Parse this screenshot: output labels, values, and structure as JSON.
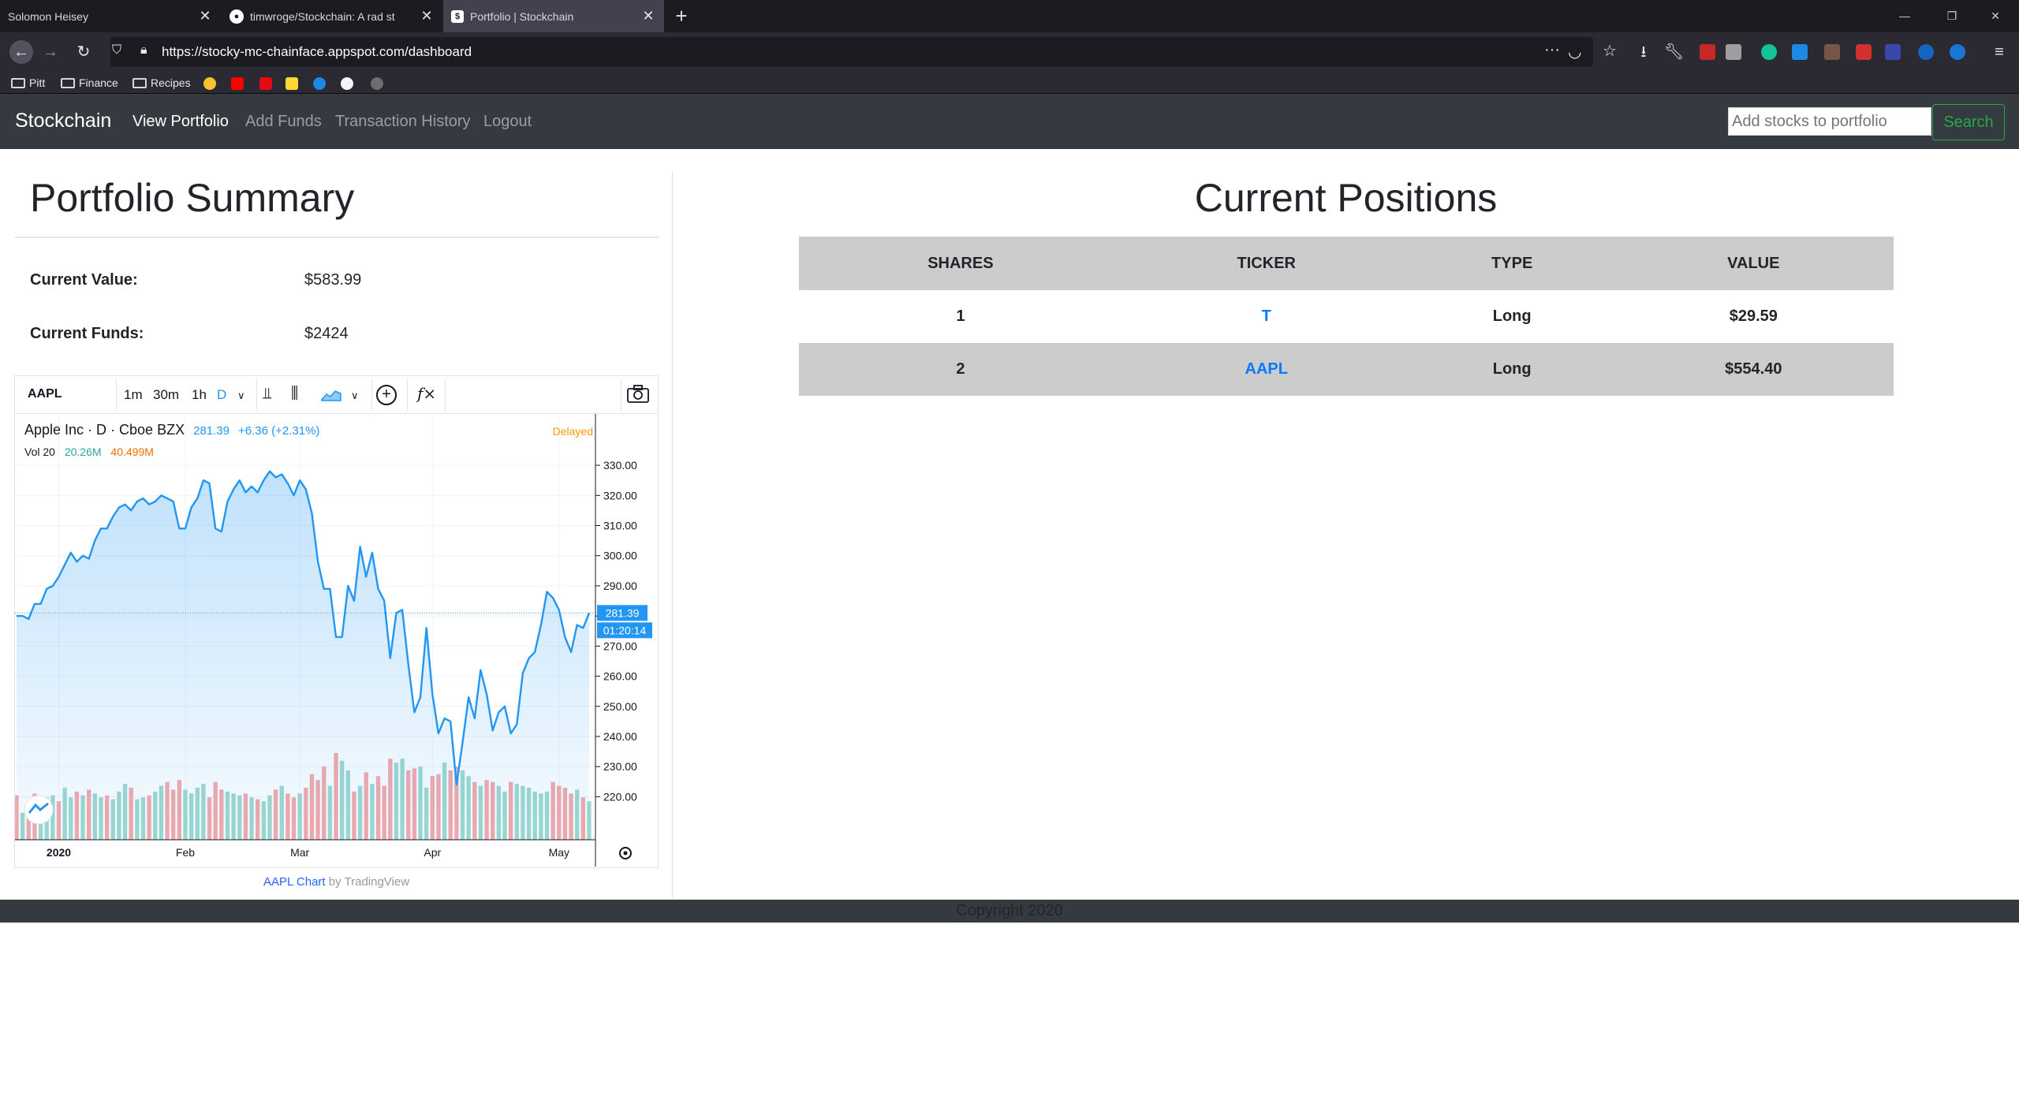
{
  "browser": {
    "tabs": [
      {
        "title": "Solomon Heisey"
      },
      {
        "title": "timwroge/Stockchain: A rad st"
      },
      {
        "title": "Portfolio | Stockchain"
      }
    ],
    "url": "https://stocky-mc-chainface.appspot.com/dashboard",
    "bookmarks": [
      "Pitt",
      "Finance",
      "Recipes"
    ]
  },
  "app_nav": {
    "brand": "Stockchain",
    "links": [
      "View Portfolio",
      "Add Funds",
      "Transaction History",
      "Logout"
    ],
    "search_placeholder": "Add stocks to portfolio",
    "search_button": "Search"
  },
  "summary": {
    "title": "Portfolio Summary",
    "current_value_label": "Current Value:",
    "current_value": "$583.99",
    "current_funds_label": "Current Funds:",
    "current_funds": "$2424"
  },
  "tv": {
    "symbol": "AAPL",
    "intervals": [
      "1m",
      "30m",
      "1h",
      "D"
    ],
    "name": "Apple Inc · D · Cboe BZX",
    "price": "281.39",
    "change": "+6.36 (+2.31%)",
    "delayed": "Delayed",
    "vol_label": "Vol 20",
    "vol_a": "20.26M",
    "vol_b": "40.499M",
    "price_tag": "281.39",
    "time_tag": "01:20:14",
    "attribution_link": "AAPL Chart",
    "attribution_rest": "by TradingView",
    "fx_icon": "f×"
  },
  "chart_data": {
    "type": "line",
    "title": "Apple Inc · D · Cboe BZX",
    "ylim": [
      212,
      335
    ],
    "yticks": [
      "330.00",
      "320.00",
      "310.00",
      "300.00",
      "290.00",
      "280.00",
      "270.00",
      "260.00",
      "250.00",
      "240.00",
      "230.00",
      "220.00"
    ],
    "ytick_values": [
      330,
      320,
      310,
      300,
      290,
      280,
      270,
      260,
      250,
      240,
      230,
      220
    ],
    "xticks": [
      "2020",
      "Feb",
      "Mar",
      "Apr",
      "May"
    ],
    "xtick_index": [
      7,
      28,
      47,
      69,
      90
    ],
    "close": [
      280,
      280,
      279,
      284,
      284,
      289,
      290,
      293,
      297,
      301,
      298,
      300,
      299,
      305,
      309,
      309,
      313,
      316,
      317,
      315,
      318,
      319,
      317,
      318,
      320,
      319,
      318,
      309,
      309,
      316,
      319,
      325,
      324,
      309,
      308,
      318,
      322,
      325,
      321,
      323,
      321,
      325,
      328,
      326,
      327,
      324,
      320,
      325,
      322,
      314,
      298,
      289,
      289,
      273,
      273,
      290,
      285,
      303,
      293,
      301,
      289,
      285,
      266,
      281,
      282,
      264,
      248,
      253,
      276,
      254,
      241,
      246,
      245,
      224,
      238,
      253,
      246,
      262,
      254,
      242,
      248,
      250,
      241,
      244,
      261,
      266,
      268,
      277,
      288,
      286,
      282,
      273,
      268,
      277,
      276,
      281
    ],
    "volume": [
      23,
      14,
      16,
      24,
      21,
      22,
      23,
      20,
      27,
      22,
      25,
      23,
      26,
      24,
      22,
      23,
      21,
      25,
      29,
      27,
      21,
      22,
      23,
      25,
      28,
      30,
      26,
      31,
      26,
      24,
      27,
      29,
      22,
      30,
      26,
      25,
      24,
      23,
      24,
      22,
      21,
      20,
      23,
      26,
      28,
      24,
      22,
      24,
      27,
      34,
      31,
      38,
      28,
      45,
      41,
      36,
      25,
      28,
      35,
      29,
      33,
      28,
      42,
      40,
      42,
      36,
      37,
      38,
      27,
      33,
      34,
      40,
      36,
      38,
      36,
      33,
      30,
      28,
      31,
      30,
      28,
      25,
      30,
      29,
      28,
      27,
      25,
      24,
      25,
      30,
      28,
      27,
      24,
      26,
      22,
      20
    ],
    "volume_up": [
      false,
      true,
      false,
      false,
      true,
      true,
      true,
      false,
      true,
      true,
      false,
      true,
      false,
      true,
      true,
      false,
      true,
      true,
      true,
      false,
      true,
      true,
      false,
      true,
      true,
      false,
      false,
      false,
      true,
      true,
      true,
      true,
      false,
      false,
      false,
      true,
      true,
      true,
      false,
      true,
      false,
      true,
      true,
      false,
      true,
      false,
      false,
      true,
      false,
      false,
      false,
      false,
      true,
      false,
      true,
      true,
      false,
      true,
      false,
      true,
      false,
      false,
      false,
      true,
      true,
      false,
      false,
      true,
      true,
      false,
      false,
      true,
      false,
      false,
      true,
      true,
      false,
      true,
      false,
      false,
      true,
      true,
      false,
      true,
      true,
      true,
      true,
      true,
      true,
      false,
      false,
      false,
      false,
      true,
      false,
      true
    ]
  },
  "positions": {
    "title": "Current Positions",
    "headers": [
      "SHARES",
      "TICKER",
      "TYPE",
      "VALUE"
    ],
    "rows": [
      {
        "shares": "1",
        "ticker": "T",
        "type": "Long",
        "value": "$29.59"
      },
      {
        "shares": "2",
        "ticker": "AAPL",
        "type": "Long",
        "value": "$554.40"
      }
    ]
  },
  "footer": {
    "text": "Copyright 2020"
  }
}
